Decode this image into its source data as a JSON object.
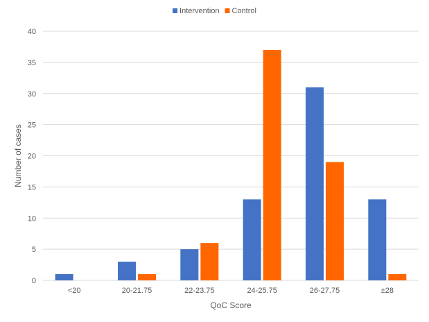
{
  "chart_data": {
    "type": "bar",
    "title": "",
    "xlabel": "QoC Score",
    "ylabel": "Number of cases",
    "categories": [
      "<20",
      "20-21.75",
      "22-23.75",
      "24-25.75",
      "26-27.75",
      "±28"
    ],
    "series": [
      {
        "name": "Intervention",
        "values": [
          1,
          3,
          5,
          13,
          31,
          13
        ],
        "color": "#4472C4"
      },
      {
        "name": "Control",
        "values": [
          0,
          1,
          6,
          37,
          19,
          1
        ],
        "color": "#FF6600"
      }
    ],
    "ylim": [
      0,
      40
    ],
    "yticks": [
      0,
      5,
      10,
      15,
      20,
      25,
      30,
      35,
      40
    ],
    "grid": true,
    "legend_position": "top"
  }
}
